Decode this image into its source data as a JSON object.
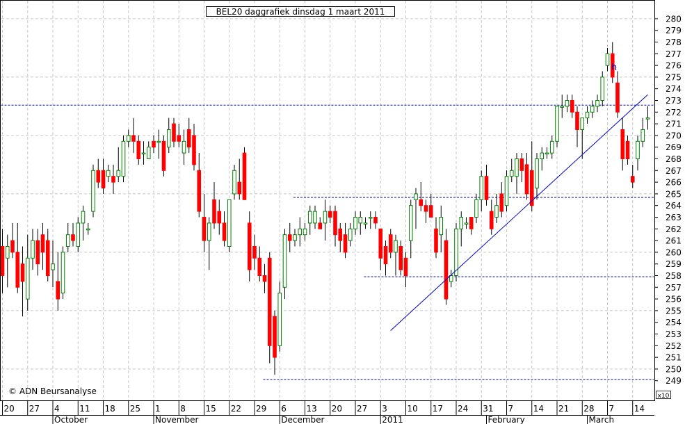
{
  "chart_data": {
    "type": "candlestick",
    "title": "BEL20 daggrafiek dinsdag 1 maart 2011",
    "copyright": "© ADN Beursanalyse",
    "x_axis_multiplier": "x10",
    "annotation_label": "h",
    "ylim": [
      248,
      281
    ],
    "y_ticks": [
      249,
      250,
      251,
      252,
      253,
      254,
      255,
      256,
      257,
      258,
      259,
      260,
      261,
      262,
      263,
      264,
      265,
      266,
      267,
      268,
      269,
      270,
      271,
      272,
      273,
      274,
      275,
      276,
      277,
      278,
      279,
      280
    ],
    "x_ticks": [
      {
        "label": "20",
        "x": 0
      },
      {
        "label": "27",
        "x": 5
      },
      {
        "label": "4",
        "x": 10
      },
      {
        "label": "11",
        "x": 15
      },
      {
        "label": "18",
        "x": 20
      },
      {
        "label": "25",
        "x": 25
      },
      {
        "label": "1",
        "x": 30
      },
      {
        "label": "8",
        "x": 35
      },
      {
        "label": "15",
        "x": 40
      },
      {
        "label": "22",
        "x": 45
      },
      {
        "label": "29",
        "x": 50
      },
      {
        "label": "6",
        "x": 55
      },
      {
        "label": "13",
        "x": 60
      },
      {
        "label": "20",
        "x": 65
      },
      {
        "label": "27",
        "x": 70
      },
      {
        "label": "3",
        "x": 75
      },
      {
        "label": "10",
        "x": 80
      },
      {
        "label": "17",
        "x": 85
      },
      {
        "label": "24",
        "x": 90
      },
      {
        "label": "31",
        "x": 95
      },
      {
        "label": "7",
        "x": 100
      },
      {
        "label": "14",
        "x": 105
      },
      {
        "label": "21",
        "x": 110
      },
      {
        "label": "28",
        "x": 115
      },
      {
        "label": "7",
        "x": 120
      },
      {
        "label": "14",
        "x": 125
      }
    ],
    "month_labels": [
      {
        "label": "October",
        "x": 10
      },
      {
        "label": "November",
        "x": 30
      },
      {
        "label": "December",
        "x": 55
      },
      {
        "label": "2011",
        "x": 75
      },
      {
        "label": "February",
        "x": 96
      },
      {
        "label": "March",
        "x": 116
      }
    ],
    "candles": [
      {
        "x": 0,
        "o": 260.5,
        "h": 262.0,
        "l": 256.5,
        "c": 258.0
      },
      {
        "x": 1,
        "o": 259.5,
        "h": 261.5,
        "l": 257.0,
        "c": 260.5
      },
      {
        "x": 2,
        "o": 261.0,
        "h": 262.5,
        "l": 259.5,
        "c": 260.0
      },
      {
        "x": 3,
        "o": 260.0,
        "h": 262.5,
        "l": 256.5,
        "c": 257.0
      },
      {
        "x": 4,
        "o": 259.0,
        "h": 260.5,
        "l": 254.5,
        "c": 257.5
      },
      {
        "x": 5,
        "o": 256.0,
        "h": 261.5,
        "l": 255.0,
        "c": 259.5
      },
      {
        "x": 6,
        "o": 259.5,
        "h": 262.0,
        "l": 258.5,
        "c": 261.0
      },
      {
        "x": 7,
        "o": 261.0,
        "h": 262.0,
        "l": 258.0,
        "c": 259.0
      },
      {
        "x": 8,
        "o": 261.5,
        "h": 262.5,
        "l": 258.5,
        "c": 260.0
      },
      {
        "x": 9,
        "o": 261.0,
        "h": 262.0,
        "l": 257.5,
        "c": 258.0
      },
      {
        "x": 10,
        "o": 258.5,
        "h": 261.0,
        "l": 257.0,
        "c": 259.0
      },
      {
        "x": 11,
        "o": 257.5,
        "h": 260.0,
        "l": 255.0,
        "c": 256.0
      },
      {
        "x": 12,
        "o": 256.5,
        "h": 260.5,
        "l": 256.0,
        "c": 260.0
      },
      {
        "x": 13,
        "o": 260.5,
        "h": 262.5,
        "l": 260.0,
        "c": 261.5
      },
      {
        "x": 14,
        "o": 261.5,
        "h": 262.5,
        "l": 260.5,
        "c": 261.0
      },
      {
        "x": 15,
        "o": 260.5,
        "h": 263.0,
        "l": 260.0,
        "c": 262.5
      },
      {
        "x": 16,
        "o": 262.5,
        "h": 264.0,
        "l": 261.0,
        "c": 263.5
      },
      {
        "x": 17,
        "o": 262.0,
        "h": 262.5,
        "l": 261.5,
        "c": 262.0
      },
      {
        "x": 18,
        "o": 263.5,
        "h": 267.5,
        "l": 263.0,
        "c": 267.0
      },
      {
        "x": 19,
        "o": 267.0,
        "h": 268.0,
        "l": 265.5,
        "c": 266.0
      },
      {
        "x": 20,
        "o": 267.0,
        "h": 268.0,
        "l": 265.0,
        "c": 265.5
      },
      {
        "x": 21,
        "o": 266.5,
        "h": 267.5,
        "l": 266.0,
        "c": 267.0
      },
      {
        "x": 22,
        "o": 266.5,
        "h": 267.5,
        "l": 265.0,
        "c": 266.0
      },
      {
        "x": 23,
        "o": 266.5,
        "h": 269.0,
        "l": 266.0,
        "c": 267.0
      },
      {
        "x": 24,
        "o": 266.5,
        "h": 270.0,
        "l": 266.0,
        "c": 269.5
      },
      {
        "x": 25,
        "o": 269.5,
        "h": 270.5,
        "l": 269.0,
        "c": 270.0
      },
      {
        "x": 26,
        "o": 270.0,
        "h": 271.5,
        "l": 268.5,
        "c": 269.5
      },
      {
        "x": 27,
        "o": 269.5,
        "h": 270.0,
        "l": 267.5,
        "c": 268.0
      },
      {
        "x": 28,
        "o": 268.5,
        "h": 269.5,
        "l": 267.5,
        "c": 268.5
      },
      {
        "x": 29,
        "o": 268.0,
        "h": 269.5,
        "l": 268.0,
        "c": 269.0
      },
      {
        "x": 30,
        "o": 269.5,
        "h": 270.0,
        "l": 268.5,
        "c": 269.0
      },
      {
        "x": 31,
        "o": 269.5,
        "h": 270.5,
        "l": 268.0,
        "c": 269.5
      },
      {
        "x": 32,
        "o": 269.5,
        "h": 270.0,
        "l": 266.5,
        "c": 267.0
      },
      {
        "x": 33,
        "o": 269.0,
        "h": 271.5,
        "l": 268.5,
        "c": 270.5
      },
      {
        "x": 34,
        "o": 271.0,
        "h": 271.5,
        "l": 269.0,
        "c": 269.5
      },
      {
        "x": 35,
        "o": 270.0,
        "h": 271.0,
        "l": 269.0,
        "c": 269.5
      },
      {
        "x": 36,
        "o": 268.5,
        "h": 270.5,
        "l": 267.5,
        "c": 269.5
      },
      {
        "x": 37,
        "o": 270.5,
        "h": 271.5,
        "l": 268.5,
        "c": 269.0
      },
      {
        "x": 38,
        "o": 270.0,
        "h": 271.0,
        "l": 267.0,
        "c": 267.5
      },
      {
        "x": 39,
        "o": 267.0,
        "h": 268.5,
        "l": 263.0,
        "c": 263.5
      },
      {
        "x": 40,
        "o": 263.0,
        "h": 265.0,
        "l": 260.0,
        "c": 261.0
      },
      {
        "x": 41,
        "o": 261.0,
        "h": 263.0,
        "l": 258.5,
        "c": 262.5
      },
      {
        "x": 42,
        "o": 264.5,
        "h": 266.0,
        "l": 262.0,
        "c": 262.5
      },
      {
        "x": 43,
        "o": 263.5,
        "h": 264.5,
        "l": 261.5,
        "c": 262.5
      },
      {
        "x": 44,
        "o": 262.5,
        "h": 263.5,
        "l": 260.5,
        "c": 261.0
      },
      {
        "x": 45,
        "o": 260.5,
        "h": 264.5,
        "l": 260.0,
        "c": 264.5
      },
      {
        "x": 46,
        "o": 265.0,
        "h": 267.5,
        "l": 264.5,
        "c": 267.0
      },
      {
        "x": 47,
        "o": 266.0,
        "h": 268.0,
        "l": 264.5,
        "c": 265.0
      },
      {
        "x": 48,
        "o": 268.5,
        "h": 269.0,
        "l": 264.5,
        "c": 264.5
      },
      {
        "x": 49,
        "o": 262.5,
        "h": 263.5,
        "l": 257.5,
        "c": 258.5
      },
      {
        "x": 50,
        "o": 260.5,
        "h": 261.5,
        "l": 258.5,
        "c": 259.5
      },
      {
        "x": 51,
        "o": 259.5,
        "h": 260.5,
        "l": 257.5,
        "c": 258.0
      },
      {
        "x": 52,
        "o": 258.0,
        "h": 259.0,
        "l": 256.5,
        "c": 257.5
      },
      {
        "x": 53,
        "o": 259.5,
        "h": 260.0,
        "l": 250.5,
        "c": 252.0
      },
      {
        "x": 54,
        "o": 254.5,
        "h": 255.0,
        "l": 249.5,
        "c": 251.0
      },
      {
        "x": 55,
        "o": 252.0,
        "h": 257.5,
        "l": 251.5,
        "c": 256.5
      },
      {
        "x": 56,
        "o": 257.0,
        "h": 262.0,
        "l": 256.0,
        "c": 261.5
      },
      {
        "x": 57,
        "o": 261.5,
        "h": 262.5,
        "l": 260.0,
        "c": 261.0
      },
      {
        "x": 58,
        "o": 261.0,
        "h": 262.0,
        "l": 260.5,
        "c": 261.5
      },
      {
        "x": 59,
        "o": 261.5,
        "h": 263.0,
        "l": 260.5,
        "c": 262.0
      },
      {
        "x": 60,
        "o": 261.5,
        "h": 262.5,
        "l": 261.0,
        "c": 262.0
      },
      {
        "x": 61,
        "o": 262.5,
        "h": 264.0,
        "l": 261.5,
        "c": 263.5
      },
      {
        "x": 62,
        "o": 262.5,
        "h": 264.0,
        "l": 262.0,
        "c": 263.5
      },
      {
        "x": 63,
        "o": 262.5,
        "h": 263.0,
        "l": 262.0,
        "c": 262.0
      },
      {
        "x": 64,
        "o": 262.5,
        "h": 264.5,
        "l": 261.0,
        "c": 263.5
      },
      {
        "x": 65,
        "o": 263.5,
        "h": 264.0,
        "l": 262.5,
        "c": 263.0
      },
      {
        "x": 66,
        "o": 263.5,
        "h": 264.0,
        "l": 260.5,
        "c": 261.5
      },
      {
        "x": 67,
        "o": 262.0,
        "h": 262.5,
        "l": 260.0,
        "c": 261.0
      },
      {
        "x": 68,
        "o": 261.5,
        "h": 262.5,
        "l": 259.5,
        "c": 260.0
      },
      {
        "x": 69,
        "o": 261.0,
        "h": 262.5,
        "l": 260.5,
        "c": 262.0
      },
      {
        "x": 70,
        "o": 262.0,
        "h": 263.5,
        "l": 261.5,
        "c": 263.0
      },
      {
        "x": 71,
        "o": 262.5,
        "h": 263.5,
        "l": 261.5,
        "c": 263.0
      },
      {
        "x": 72,
        "o": 262.5,
        "h": 263.0,
        "l": 262.0,
        "c": 262.5
      },
      {
        "x": 73,
        "o": 263.0,
        "h": 263.5,
        "l": 262.0,
        "c": 263.0
      },
      {
        "x": 74,
        "o": 263.0,
        "h": 263.5,
        "l": 262.0,
        "c": 262.5
      },
      {
        "x": 75,
        "o": 262.0,
        "h": 262.0,
        "l": 258.5,
        "c": 259.5
      },
      {
        "x": 76,
        "o": 260.5,
        "h": 261.0,
        "l": 258.0,
        "c": 259.0
      },
      {
        "x": 77,
        "o": 261.5,
        "h": 262.0,
        "l": 259.5,
        "c": 260.0
      },
      {
        "x": 78,
        "o": 260.0,
        "h": 261.5,
        "l": 258.0,
        "c": 261.0
      },
      {
        "x": 79,
        "o": 260.5,
        "h": 261.0,
        "l": 258.0,
        "c": 258.5
      },
      {
        "x": 80,
        "o": 259.5,
        "h": 260.0,
        "l": 257.0,
        "c": 258.0
      },
      {
        "x": 81,
        "o": 261.0,
        "h": 264.5,
        "l": 259.5,
        "c": 264.0
      },
      {
        "x": 82,
        "o": 264.5,
        "h": 265.5,
        "l": 262.0,
        "c": 265.0
      },
      {
        "x": 83,
        "o": 264.5,
        "h": 266.0,
        "l": 263.5,
        "c": 264.0
      },
      {
        "x": 84,
        "o": 264.0,
        "h": 264.5,
        "l": 262.5,
        "c": 263.5
      },
      {
        "x": 85,
        "o": 264.0,
        "h": 265.0,
        "l": 263.0,
        "c": 263.0
      },
      {
        "x": 86,
        "o": 262.0,
        "h": 263.0,
        "l": 259.5,
        "c": 260.0
      },
      {
        "x": 87,
        "o": 261.5,
        "h": 264.0,
        "l": 260.0,
        "c": 263.0
      },
      {
        "x": 88,
        "o": 261.0,
        "h": 262.0,
        "l": 255.5,
        "c": 256.0
      },
      {
        "x": 89,
        "o": 257.5,
        "h": 258.5,
        "l": 257.0,
        "c": 258.0
      },
      {
        "x": 90,
        "o": 258.0,
        "h": 262.5,
        "l": 257.5,
        "c": 262.0
      },
      {
        "x": 91,
        "o": 262.0,
        "h": 263.5,
        "l": 260.5,
        "c": 263.0
      },
      {
        "x": 92,
        "o": 262.5,
        "h": 263.0,
        "l": 262.0,
        "c": 262.5
      },
      {
        "x": 93,
        "o": 263.0,
        "h": 263.0,
        "l": 261.5,
        "c": 262.0
      },
      {
        "x": 94,
        "o": 263.0,
        "h": 265.0,
        "l": 262.5,
        "c": 264.5
      },
      {
        "x": 95,
        "o": 264.5,
        "h": 267.0,
        "l": 263.5,
        "c": 266.5
      },
      {
        "x": 96,
        "o": 266.5,
        "h": 267.5,
        "l": 264.0,
        "c": 264.5
      },
      {
        "x": 97,
        "o": 263.5,
        "h": 264.5,
        "l": 261.5,
        "c": 262.0
      },
      {
        "x": 98,
        "o": 263.0,
        "h": 265.0,
        "l": 262.5,
        "c": 264.0
      },
      {
        "x": 99,
        "o": 265.0,
        "h": 266.0,
        "l": 263.0,
        "c": 263.5
      },
      {
        "x": 100,
        "o": 264.0,
        "h": 267.0,
        "l": 263.5,
        "c": 266.5
      },
      {
        "x": 101,
        "o": 266.5,
        "h": 268.0,
        "l": 266.0,
        "c": 267.0
      },
      {
        "x": 102,
        "o": 266.5,
        "h": 268.5,
        "l": 265.0,
        "c": 268.0
      },
      {
        "x": 103,
        "o": 268.0,
        "h": 268.5,
        "l": 266.0,
        "c": 267.0
      },
      {
        "x": 104,
        "o": 267.5,
        "h": 268.5,
        "l": 264.5,
        "c": 265.0
      },
      {
        "x": 105,
        "o": 267.0,
        "h": 269.5,
        "l": 263.5,
        "c": 264.0
      },
      {
        "x": 106,
        "o": 265.5,
        "h": 268.5,
        "l": 264.5,
        "c": 268.0
      },
      {
        "x": 107,
        "o": 268.0,
        "h": 269.0,
        "l": 267.0,
        "c": 268.5
      },
      {
        "x": 108,
        "o": 268.5,
        "h": 269.0,
        "l": 268.0,
        "c": 268.5
      },
      {
        "x": 109,
        "o": 268.5,
        "h": 270.0,
        "l": 268.0,
        "c": 269.5
      },
      {
        "x": 110,
        "o": 269.5,
        "h": 272.5,
        "l": 269.0,
        "c": 272.5
      },
      {
        "x": 111,
        "o": 272.5,
        "h": 273.5,
        "l": 271.5,
        "c": 272.5
      },
      {
        "x": 112,
        "o": 272.5,
        "h": 273.5,
        "l": 272.0,
        "c": 273.0
      },
      {
        "x": 113,
        "o": 273.0,
        "h": 273.5,
        "l": 271.5,
        "c": 272.0
      },
      {
        "x": 114,
        "o": 272.0,
        "h": 272.5,
        "l": 269.0,
        "c": 270.5
      },
      {
        "x": 115,
        "o": 270.5,
        "h": 271.5,
        "l": 268.0,
        "c": 271.5
      },
      {
        "x": 116,
        "o": 271.5,
        "h": 272.5,
        "l": 271.0,
        "c": 272.0
      },
      {
        "x": 117,
        "o": 272.0,
        "h": 273.0,
        "l": 271.5,
        "c": 272.5
      },
      {
        "x": 118,
        "o": 272.5,
        "h": 273.5,
        "l": 272.0,
        "c": 273.0
      },
      {
        "x": 119,
        "o": 273.0,
        "h": 275.5,
        "l": 272.5,
        "c": 275.0
      },
      {
        "x": 120,
        "o": 276.0,
        "h": 277.5,
        "l": 275.5,
        "c": 277.0
      },
      {
        "x": 121,
        "o": 277.0,
        "h": 278.0,
        "l": 274.5,
        "c": 275.0
      },
      {
        "x": 122,
        "o": 274.5,
        "h": 275.5,
        "l": 271.5,
        "c": 272.0
      },
      {
        "x": 123,
        "o": 270.5,
        "h": 271.5,
        "l": 267.0,
        "c": 268.0
      },
      {
        "x": 124,
        "o": 269.5,
        "h": 270.0,
        "l": 267.5,
        "c": 268.0
      },
      {
        "x": 125,
        "o": 266.5,
        "h": 267.5,
        "l": 265.5,
        "c": 266.0
      },
      {
        "x": 126,
        "o": 268.0,
        "h": 270.0,
        "l": 267.0,
        "c": 269.5
      },
      {
        "x": 127,
        "o": 269.5,
        "h": 271.5,
        "l": 269.0,
        "c": 270.5
      },
      {
        "x": 128,
        "o": 271.5,
        "h": 272.5,
        "l": 270.5,
        "c": 271.5
      }
    ],
    "horizontal_lines": [
      272.6,
      264.7,
      257.9,
      249.1
    ],
    "trendline": {
      "x1": 77,
      "y1": 253.3,
      "x2": 128,
      "y2": 273.5
    },
    "colors": {
      "up": "#008000",
      "down": "#ff0000",
      "wick": "#000000",
      "grid": "#c8c8c8",
      "level_line": "#0000a0",
      "trend_line": "#0000c0"
    }
  }
}
